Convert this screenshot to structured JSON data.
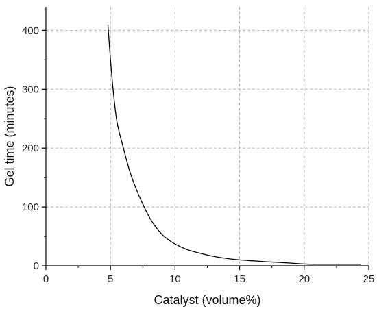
{
  "chart_data": {
    "type": "line",
    "title": "",
    "xlabel": "Catalyst (volume%)",
    "ylabel": "Gel time (minutes)",
    "xlim": [
      0,
      25
    ],
    "ylim": [
      0,
      440
    ],
    "xticks": [
      0,
      5,
      10,
      15,
      20,
      25
    ],
    "yticks": [
      0,
      100,
      200,
      300,
      400
    ],
    "grid": true,
    "grid_style": "dashed",
    "series": [
      {
        "color": "#000000",
        "x": [
          4.8,
          5.0,
          5.2,
          5.5,
          6.0,
          6.5,
          7.0,
          7.5,
          8.0,
          8.5,
          9.0,
          9.5,
          10.0,
          11.0,
          12.0,
          13.0,
          14.0,
          15.0,
          16.0,
          17.0,
          18.0,
          19.0,
          20.0,
          21.0,
          22.0,
          23.0,
          24.0,
          24.4
        ],
        "y": [
          410,
          350,
          300,
          245,
          200,
          160,
          130,
          105,
          83,
          66,
          53,
          44,
          37,
          27,
          21,
          16,
          12.5,
          10,
          8.5,
          7,
          5.8,
          4.5,
          3,
          2.5,
          2.5,
          2.5,
          2.5,
          2.5
        ]
      }
    ]
  }
}
